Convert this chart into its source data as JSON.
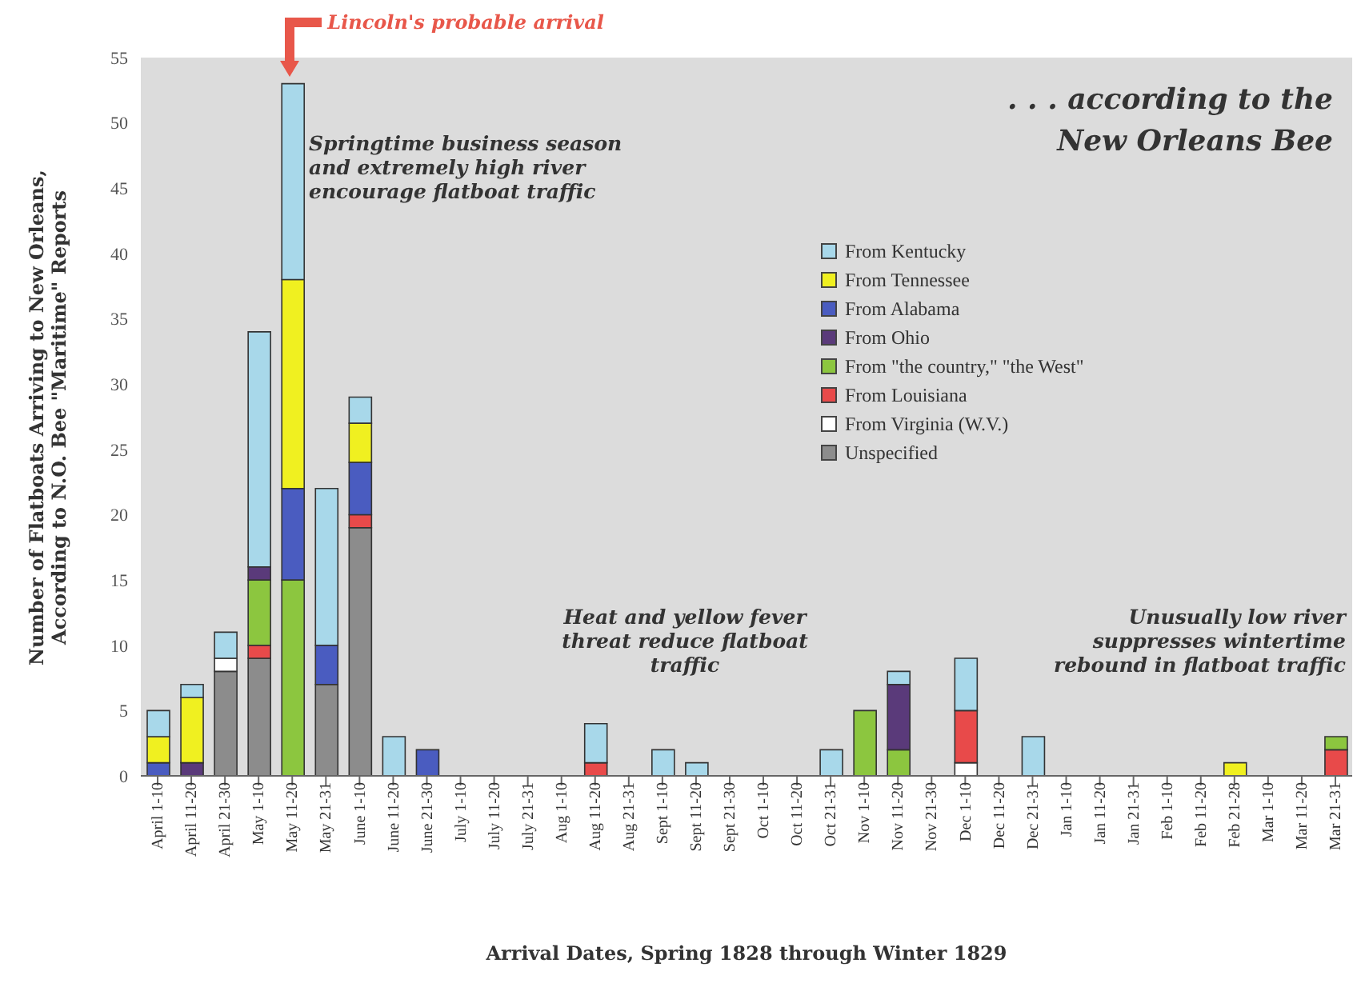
{
  "chart_data": {
    "type": "bar",
    "stacked": true,
    "xlabel": "Arrival Dates, Spring 1828 through Winter 1829",
    "ylabel": "Number of Flatboats Arriving to New Orleans, According to N.O. Bee \"Maritime\" Reports",
    "categories": [
      "April 1-10",
      "April 11-20",
      "April 21-30",
      "May 1-10",
      "May 11-20",
      "May 21-31",
      "June 1-10",
      "June 11-20",
      "June 21-30",
      "July 1-10",
      "July 11-20",
      "July 21-31",
      "Aug 1-10",
      "Aug 11-20",
      "Aug 21-31",
      "Sept 1-10",
      "Sept 11-20",
      "Sept 21-30",
      "Oct 1-10",
      "Oct 11-20",
      "Oct 21-31",
      "Nov 1-10",
      "Nov 11-20",
      "Nov 21-30",
      "Dec 1-10",
      "Dec 11-20",
      "Dec 21-31",
      "Jan 1-10",
      "Jan 11-20",
      "Jan 21-31",
      "Feb 1-10",
      "Feb 11-20",
      "Feb 21-28",
      "Mar 1-10",
      "Mar 11-20",
      "Mar 21-31"
    ],
    "series": [
      {
        "name": "Unspecified",
        "color": "#8c8c8c",
        "values": [
          0,
          0,
          8,
          9,
          0,
          7,
          19,
          0,
          0,
          0,
          0,
          0,
          0,
          0,
          0,
          0,
          0,
          0,
          0,
          0,
          0,
          0,
          0,
          0,
          0,
          0,
          0,
          0,
          0,
          0,
          0,
          0,
          0,
          0,
          0,
          0
        ]
      },
      {
        "name": "From Virginia (W.V.)",
        "color": "#ffffff",
        "values": [
          0,
          0,
          1,
          0,
          0,
          0,
          0,
          0,
          0,
          0,
          0,
          0,
          0,
          0,
          0,
          0,
          0,
          0,
          0,
          0,
          0,
          0,
          0,
          0,
          1,
          0,
          0,
          0,
          0,
          0,
          0,
          0,
          0,
          0,
          0,
          0
        ]
      },
      {
        "name": "From Louisiana",
        "color": "#e84a4a",
        "values": [
          0,
          0,
          0,
          1,
          0,
          0,
          1,
          0,
          0,
          0,
          0,
          0,
          0,
          1,
          0,
          0,
          0,
          0,
          0,
          0,
          0,
          0,
          0,
          0,
          4,
          0,
          0,
          0,
          0,
          0,
          0,
          0,
          0,
          0,
          0,
          2
        ]
      },
      {
        "name": "From \"the country,\" \"the West\"",
        "color": "#8cc63f",
        "values": [
          0,
          0,
          0,
          5,
          15,
          0,
          0,
          0,
          0,
          0,
          0,
          0,
          0,
          0,
          0,
          0,
          0,
          0,
          0,
          0,
          0,
          5,
          2,
          0,
          0,
          0,
          0,
          0,
          0,
          0,
          0,
          0,
          0,
          0,
          0,
          1
        ]
      },
      {
        "name": "From Ohio",
        "color": "#5a3a7a",
        "values": [
          0,
          1,
          0,
          1,
          0,
          0,
          0,
          0,
          0,
          0,
          0,
          0,
          0,
          0,
          0,
          0,
          0,
          0,
          0,
          0,
          0,
          0,
          5,
          0,
          0,
          0,
          0,
          0,
          0,
          0,
          0,
          0,
          0,
          0,
          0,
          0
        ]
      },
      {
        "name": "From Alabama",
        "color": "#4a5cc0",
        "values": [
          1,
          0,
          0,
          0,
          7,
          3,
          4,
          0,
          2,
          0,
          0,
          0,
          0,
          0,
          0,
          0,
          0,
          0,
          0,
          0,
          0,
          0,
          0,
          0,
          0,
          0,
          0,
          0,
          0,
          0,
          0,
          0,
          0,
          0,
          0,
          0
        ]
      },
      {
        "name": "From Tennessee",
        "color": "#f0f020",
        "values": [
          2,
          5,
          0,
          0,
          16,
          0,
          3,
          0,
          0,
          0,
          0,
          0,
          0,
          0,
          0,
          0,
          0,
          0,
          0,
          0,
          0,
          0,
          0,
          0,
          0,
          0,
          0,
          0,
          0,
          0,
          0,
          0,
          1,
          0,
          0,
          0
        ]
      },
      {
        "name": "From Kentucky",
        "color": "#a8d8ea",
        "values": [
          2,
          1,
          2,
          18,
          15,
          12,
          2,
          3,
          0,
          0,
          0,
          0,
          0,
          3,
          0,
          2,
          1,
          0,
          0,
          0,
          2,
          0,
          1,
          0,
          4,
          0,
          3,
          0,
          0,
          0,
          0,
          0,
          0,
          0,
          0,
          0
        ]
      }
    ],
    "ylim": [
      0,
      55
    ],
    "yticks": [
      0,
      5,
      10,
      15,
      20,
      25,
      30,
      35,
      40,
      45,
      50,
      55
    ],
    "grid": false,
    "legend": "top right",
    "annotations": [
      "Lincoln's probable arrival",
      "Springtime business season and extremely high river encourage flatboat traffic",
      "Heat and yellow fever threat reduce flatboat traffic",
      "Unusually low river suppresses wintertime rebound in flatboat traffic"
    ],
    "subtitle": ". . . according to the New Orleans Bee"
  }
}
